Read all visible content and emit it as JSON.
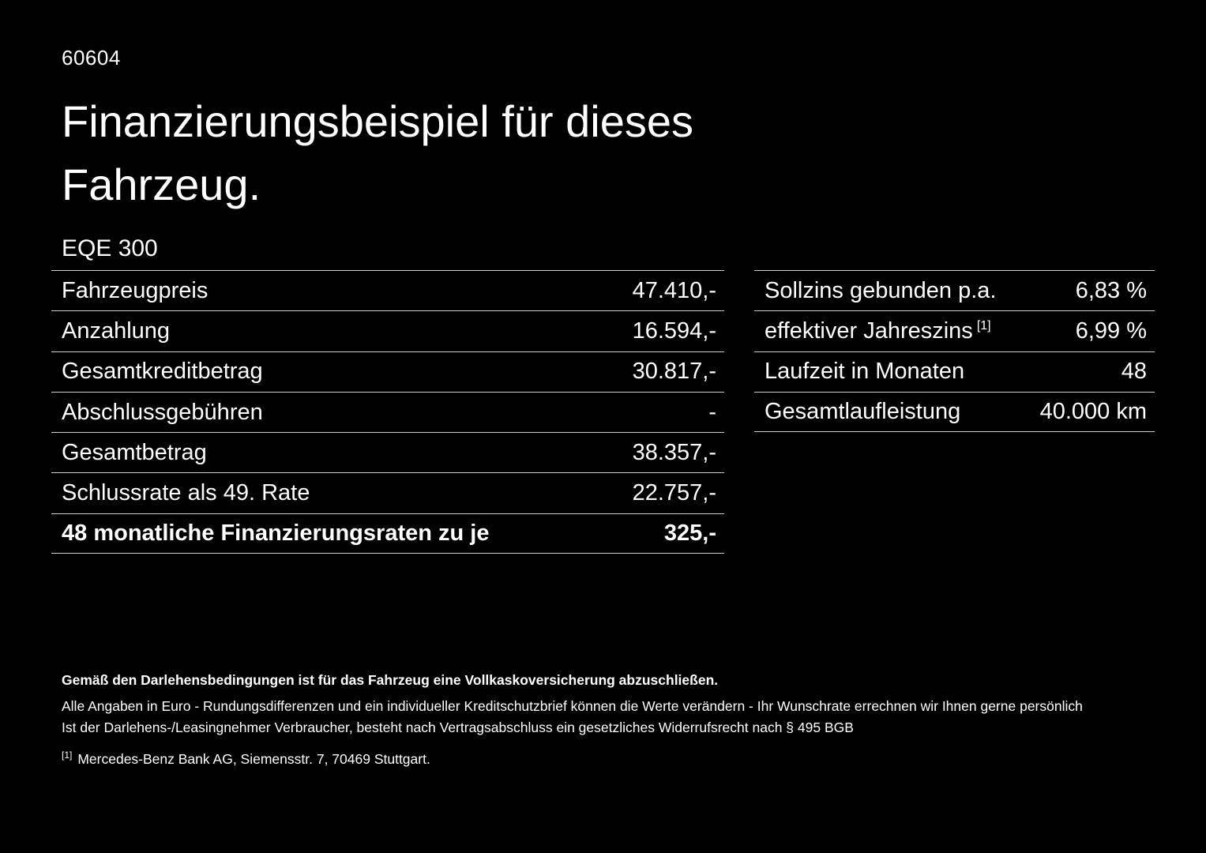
{
  "page": {
    "code": "60604",
    "title_line1": "Finanzierungsbeispiel für dieses",
    "title_line2": "Fahrzeug.",
    "model": "EQE 300",
    "background_color": "#000000",
    "text_color": "#ffffff",
    "rule_color": "#cfcfcf"
  },
  "left_table": {
    "rows": [
      {
        "label": "Fahrzeugpreis",
        "value": "47.410,-"
      },
      {
        "label": "Anzahlung",
        "value": "16.594,-"
      },
      {
        "label": "Gesamtkreditbetrag",
        "value": "30.817,-"
      },
      {
        "label": "Abschlussgebühren",
        "value": "-"
      },
      {
        "label": "Gesamtbetrag",
        "value": "38.357,-"
      },
      {
        "label": "Schlussrate als 49. Rate",
        "value": "22.757,-"
      },
      {
        "label": "48 monatliche Finanzierungsraten zu je",
        "value": "325,-"
      }
    ]
  },
  "right_table": {
    "rows": [
      {
        "label": "Sollzins gebunden p.a.",
        "sup": "",
        "value": "6,83 %"
      },
      {
        "label": "effektiver Jahreszins",
        "sup": "[1]",
        "value": "6,99 %"
      },
      {
        "label": "Laufzeit in Monaten",
        "sup": "",
        "value": "48"
      },
      {
        "label": "Gesamtlaufleistung",
        "sup": "",
        "value": "40.000 km"
      }
    ]
  },
  "footnotes": {
    "bold_line": "Gemäß den Darlehensbedingungen ist für das Fahrzeug eine Vollkaskoversicherung abzuschließen.",
    "line2": "Alle Angaben in Euro - Rundungsdifferenzen und ein individueller Kreditschutzbrief können die Werte verändern - Ihr Wunschrate errechnen wir Ihnen gerne persönlich",
    "line3": "Ist der Darlehens-/Leasingnehmer Verbraucher, besteht nach Vertragsabschluss ein gesetzliches Widerrufsrecht nach § 495 BGB",
    "ref_marker": "[1]",
    "ref_text": "Mercedes-Benz Bank AG, Siemensstr. 7, 70469 Stuttgart."
  }
}
